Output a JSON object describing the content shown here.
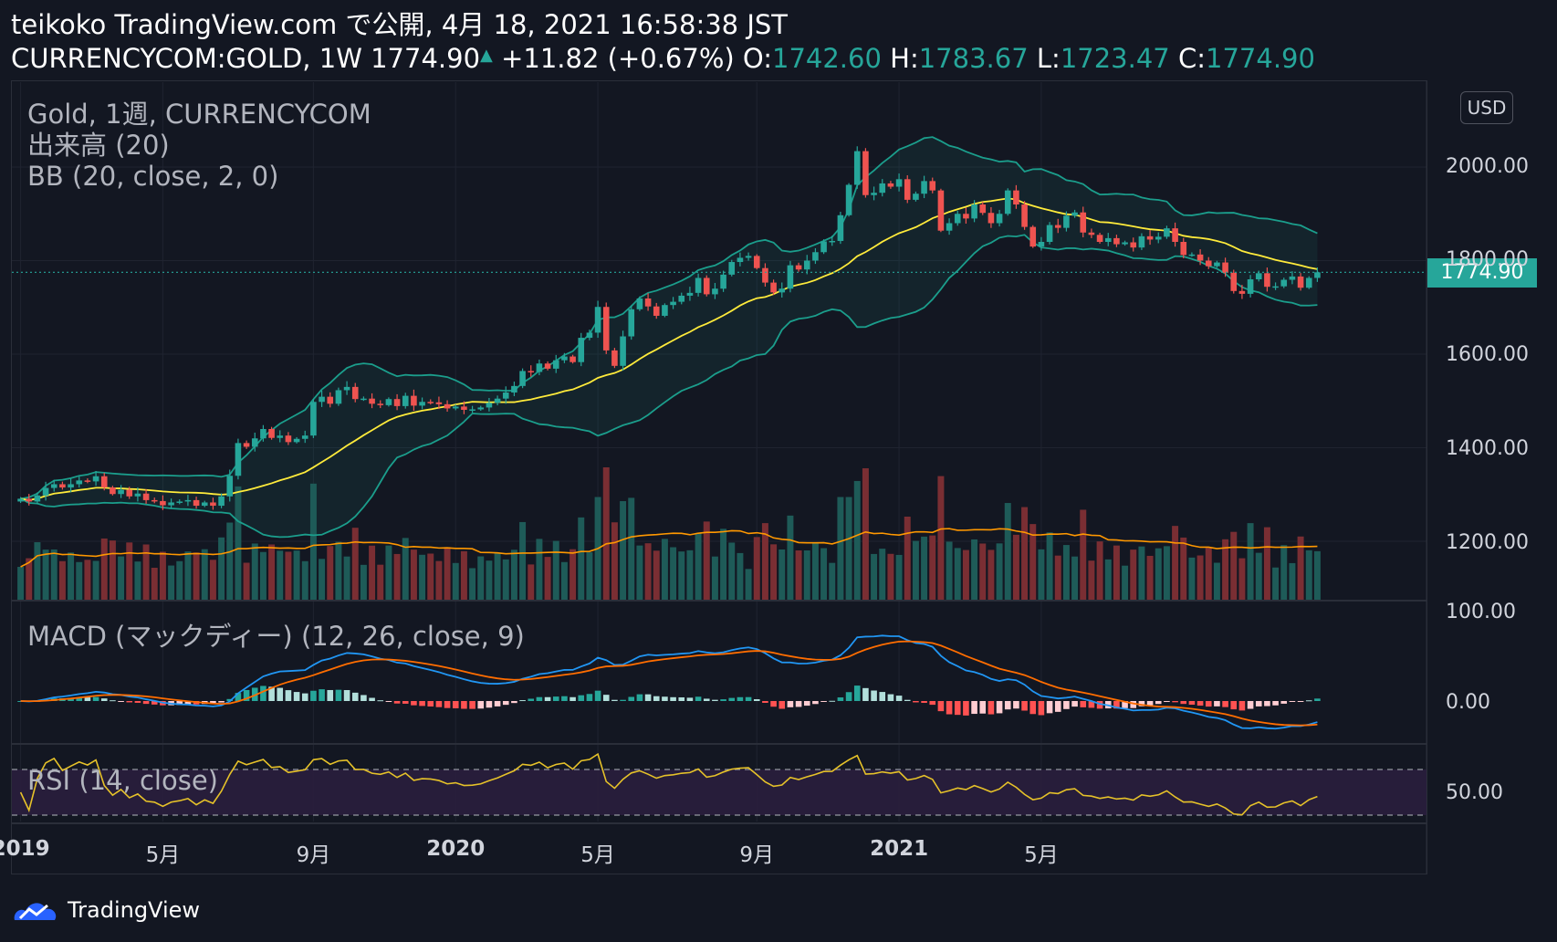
{
  "header": {
    "line1": "teikoko TradingView.com で公開, 4月 18, 2021 16:58:38 JST",
    "symbol": "CURRENCYCOM:GOLD, 1W",
    "last": "1774.90",
    "change": "+11.82 (+0.67%)",
    "o_label": "O:",
    "o_value": "1742.60",
    "h_label": "H:",
    "h_value": "1783.67",
    "l_label": "L:",
    "l_value": "1723.47",
    "c_label": "C:",
    "c_value": "1774.90"
  },
  "legend": {
    "line1": "Gold, 1週, CURRENCYCOM",
    "line2": "出来高 (20)",
    "line3": "BB (20, close, 2, 0)",
    "macd": "MACD (マックディー) (12, 26, close, 9)",
    "rsi": "RSI (14, close)"
  },
  "currency_badge": "USD",
  "price_tag": "1774.90",
  "price_axis": [
    "2000.00",
    "1800.00",
    "1600.00",
    "1400.00",
    "1200.00"
  ],
  "macd_axis": [
    "100.00",
    "0.00"
  ],
  "rsi_axis": [
    "50.00"
  ],
  "time_axis": [
    {
      "label": "2019",
      "year": true,
      "t": 0
    },
    {
      "label": "5月",
      "year": false,
      "t": 17
    },
    {
      "label": "9月",
      "year": false,
      "t": 35
    },
    {
      "label": "2020",
      "year": true,
      "t": 52
    },
    {
      "label": "5月",
      "year": false,
      "t": 69
    },
    {
      "label": "9月",
      "year": false,
      "t": 88
    },
    {
      "label": "2021",
      "year": true,
      "t": 105
    },
    {
      "label": "5月",
      "year": false,
      "t": 122
    }
  ],
  "footer": {
    "brand": "TradingView"
  },
  "colors": {
    "up": "#26a69a",
    "down": "#ef5350",
    "vol_up": "#1e5b58",
    "vol_down": "#7a2e33",
    "bb_basis": "#ffeb3b",
    "bb_band": "#1b9e8c",
    "vol_ma": "#ff9800",
    "macd": "#2196f3",
    "signal": "#ff6d00",
    "rsi": "#e6c229",
    "rsi_band": "#2a1e3d"
  },
  "chart_data": {
    "type": "candlestick",
    "title": "CURRENCYCOM:GOLD, 1W",
    "interval": "1W",
    "ylim": [
      1100,
      2100
    ],
    "closes": [
      1291,
      1285,
      1298,
      1314,
      1322,
      1315,
      1322,
      1330,
      1328,
      1339,
      1315,
      1301,
      1310,
      1296,
      1302,
      1288,
      1286,
      1277,
      1283,
      1285,
      1288,
      1276,
      1283,
      1276,
      1296,
      1340,
      1410,
      1402,
      1420,
      1440,
      1421,
      1426,
      1412,
      1419,
      1426,
      1498,
      1509,
      1494,
      1523,
      1530,
      1504,
      1505,
      1494,
      1491,
      1504,
      1489,
      1511,
      1490,
      1498,
      1497,
      1493,
      1484,
      1488,
      1481,
      1482,
      1486,
      1496,
      1505,
      1518,
      1532,
      1564,
      1562,
      1580,
      1569,
      1587,
      1595,
      1583,
      1635,
      1646,
      1701,
      1608,
      1575,
      1638,
      1696,
      1719,
      1702,
      1682,
      1705,
      1712,
      1725,
      1731,
      1763,
      1728,
      1740,
      1770,
      1797,
      1806,
      1810,
      1784,
      1753,
      1732,
      1740,
      1790,
      1781,
      1800,
      1818,
      1841,
      1842,
      1897,
      1962,
      2034,
      1940,
      1945,
      1965,
      1958,
      1974,
      1930,
      1943,
      1970,
      1950,
      1864,
      1880,
      1900,
      1890,
      1920,
      1902,
      1880,
      1900,
      1950,
      1920,
      1872,
      1830,
      1840,
      1876,
      1870,
      1896,
      1903,
      1860,
      1855,
      1840,
      1848,
      1835,
      1839,
      1828,
      1852,
      1845,
      1851,
      1869,
      1840,
      1812,
      1813,
      1800,
      1788,
      1796,
      1774,
      1735,
      1729,
      1760,
      1773,
      1744,
      1745,
      1759,
      1766,
      1742,
      1763,
      1775
    ],
    "volume_ma": "line",
    "bollinger": {
      "period": 20,
      "mult": 2
    },
    "macd": {
      "fast": 12,
      "slow": 26,
      "signal": 9
    },
    "rsi": {
      "period": 14,
      "levels": [
        70,
        30
      ]
    }
  }
}
